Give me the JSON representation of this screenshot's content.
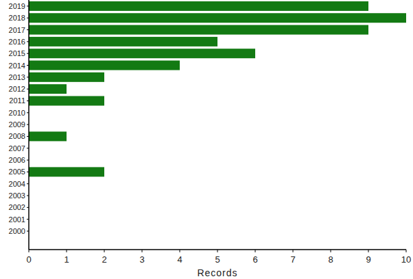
{
  "chart_data": {
    "type": "bar",
    "orientation": "horizontal",
    "x_label": "Records",
    "categories": [
      "2000",
      "2001",
      "2002",
      "2003",
      "2004",
      "2005",
      "2006",
      "2007",
      "2008",
      "2009",
      "2010",
      "2011",
      "2012",
      "2013",
      "2014",
      "2015",
      "2016",
      "2017",
      "2018",
      "2019"
    ],
    "values": [
      0,
      0,
      0,
      0,
      0,
      2,
      0,
      0,
      1,
      0,
      0,
      2,
      1,
      2,
      4,
      6,
      5,
      9,
      10,
      9
    ],
    "color": "#137a13",
    "xlim": [
      0,
      10
    ],
    "xticks": [
      0,
      1,
      2,
      3,
      4,
      5,
      6,
      7,
      8,
      9,
      10
    ],
    "grid": false
  }
}
